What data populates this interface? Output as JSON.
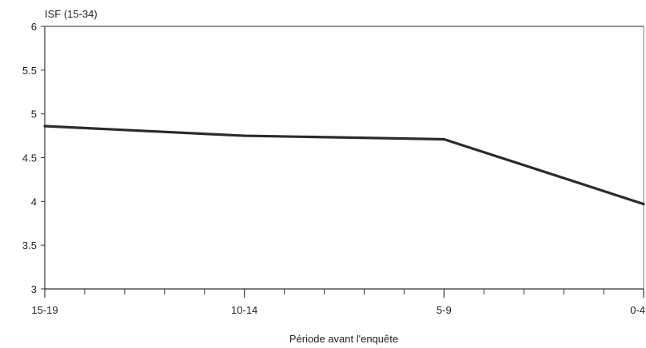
{
  "chart_data": {
    "type": "line",
    "title": "",
    "ylabel": "ISF (15-34)",
    "xlabel": "Période avant l'enquête",
    "categories": [
      "15-19",
      "10-14",
      "5-9",
      "0-4"
    ],
    "series": [
      {
        "values": [
          4.86,
          4.75,
          4.71,
          3.97
        ]
      }
    ],
    "ylim": [
      3,
      6
    ],
    "yticks": [
      "3",
      "3.5",
      "4",
      "4.5",
      "5",
      "5.5",
      "6"
    ],
    "grid": false,
    "colors": {
      "line": "#2b2b2b",
      "axis": "#333333"
    }
  }
}
